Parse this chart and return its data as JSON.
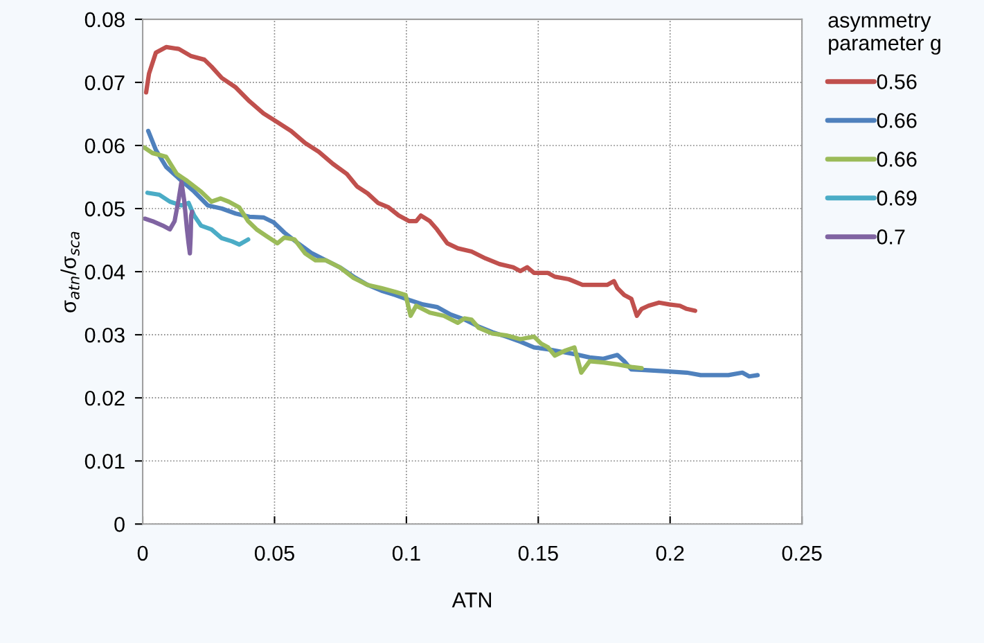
{
  "chart_data": {
    "type": "line",
    "xlabel": "ATN",
    "ylabel": "σ$_{atn}$/σ$_{sca}$",
    "legend_title": "asymmetry\nparameter g",
    "xlim": [
      0,
      0.25
    ],
    "xticks": [
      0,
      0.05,
      0.1,
      0.15,
      0.2,
      0.25
    ],
    "ylim": [
      0,
      0.08
    ],
    "yticks": [
      0,
      0.01,
      0.02,
      0.03,
      0.04,
      0.05,
      0.06,
      0.07,
      0.08
    ],
    "grid": true,
    "legend": "right",
    "line_style": "solid",
    "marker": "none",
    "series": [
      {
        "name": "0.56",
        "color": "#c0504d",
        "x": [
          0.0013,
          0.0024,
          0.005,
          0.0089,
          0.0137,
          0.0182,
          0.0234,
          0.0261,
          0.03,
          0.0353,
          0.0405,
          0.0458,
          0.0511,
          0.0563,
          0.0616,
          0.0668,
          0.0721,
          0.0774,
          0.0813,
          0.0853,
          0.0892,
          0.0932,
          0.0971,
          0.1011,
          0.1037,
          0.1055,
          0.1089,
          0.1116,
          0.1155,
          0.1195,
          0.1247,
          0.13,
          0.1353,
          0.1405,
          0.1432,
          0.1458,
          0.1484,
          0.1537,
          0.1563,
          0.1616,
          0.1668,
          0.1721,
          0.1761,
          0.1787,
          0.18,
          0.1826,
          0.1853,
          0.1874,
          0.1892,
          0.1918,
          0.1958,
          0.1997,
          0.2037,
          0.2063,
          0.2095
        ],
        "values": [
          0.0684,
          0.0714,
          0.0747,
          0.0756,
          0.0753,
          0.0742,
          0.0736,
          0.0725,
          0.0707,
          0.0692,
          0.067,
          0.0651,
          0.0637,
          0.0623,
          0.0604,
          0.059,
          0.0571,
          0.0555,
          0.0535,
          0.0524,
          0.0509,
          0.0502,
          0.0489,
          0.048,
          0.048,
          0.0489,
          0.048,
          0.0467,
          0.0445,
          0.0437,
          0.0432,
          0.0421,
          0.0412,
          0.0407,
          0.0401,
          0.0407,
          0.0398,
          0.0398,
          0.0392,
          0.0388,
          0.0379,
          0.0379,
          0.0379,
          0.0385,
          0.0374,
          0.0363,
          0.0357,
          0.033,
          0.0341,
          0.0346,
          0.0351,
          0.0348,
          0.0346,
          0.0341,
          0.0338
        ]
      },
      {
        "name": "0.66",
        "color": "#4f81bd",
        "x": [
          0.0021,
          0.005,
          0.0089,
          0.0142,
          0.0195,
          0.0247,
          0.03,
          0.0353,
          0.0405,
          0.0458,
          0.0497,
          0.0537,
          0.0589,
          0.0642,
          0.0695,
          0.0747,
          0.08,
          0.0853,
          0.0905,
          0.0958,
          0.1011,
          0.1063,
          0.1116,
          0.1168,
          0.1221,
          0.1274,
          0.1326,
          0.1379,
          0.1432,
          0.1484,
          0.1537,
          0.1589,
          0.1642,
          0.1695,
          0.1747,
          0.18,
          0.1826,
          0.1853,
          0.1905,
          0.1984,
          0.2063,
          0.2116,
          0.2168,
          0.2221,
          0.2274,
          0.23,
          0.2332
        ],
        "values": [
          0.0623,
          0.0593,
          0.0566,
          0.0546,
          0.0527,
          0.0505,
          0.05,
          0.0492,
          0.0487,
          0.0486,
          0.0478,
          0.0462,
          0.0445,
          0.0429,
          0.0418,
          0.0407,
          0.0392,
          0.0379,
          0.037,
          0.0363,
          0.0355,
          0.0348,
          0.0344,
          0.0332,
          0.0324,
          0.0313,
          0.0304,
          0.0297,
          0.0289,
          0.028,
          0.0277,
          0.0273,
          0.0269,
          0.0264,
          0.0262,
          0.0268,
          0.0258,
          0.0245,
          0.0244,
          0.0242,
          0.024,
          0.0236,
          0.0236,
          0.0236,
          0.024,
          0.0234,
          0.0236
        ]
      },
      {
        "name": "0.66",
        "color": "#9bbb59",
        "x": [
          0.0005,
          0.0037,
          0.0089,
          0.0129,
          0.0168,
          0.0221,
          0.0261,
          0.0295,
          0.0326,
          0.0366,
          0.04,
          0.0432,
          0.0471,
          0.0511,
          0.0537,
          0.0576,
          0.0616,
          0.0655,
          0.0695,
          0.0747,
          0.08,
          0.0853,
          0.0905,
          0.0958,
          0.0997,
          0.1016,
          0.1037,
          0.1089,
          0.1142,
          0.1195,
          0.1221,
          0.1247,
          0.1274,
          0.1326,
          0.1379,
          0.1432,
          0.1484,
          0.1511,
          0.1537,
          0.1563,
          0.1603,
          0.1637,
          0.1663,
          0.1695,
          0.1747,
          0.18,
          0.1853,
          0.1892
        ],
        "values": [
          0.0597,
          0.0588,
          0.0582,
          0.0555,
          0.0544,
          0.0527,
          0.0511,
          0.0516,
          0.0511,
          0.0502,
          0.048,
          0.0467,
          0.0456,
          0.0445,
          0.0454,
          0.0451,
          0.0429,
          0.0418,
          0.0418,
          0.0407,
          0.039,
          0.0379,
          0.0374,
          0.0368,
          0.0363,
          0.033,
          0.0346,
          0.0335,
          0.033,
          0.0319,
          0.0326,
          0.0324,
          0.0311,
          0.0302,
          0.0299,
          0.0293,
          0.0297,
          0.0286,
          0.028,
          0.0267,
          0.0275,
          0.028,
          0.024,
          0.0258,
          0.0256,
          0.0253,
          0.0249,
          0.0247
        ]
      },
      {
        "name": "0.69",
        "color": "#4bacc6",
        "x": [
          0.0018,
          0.0063,
          0.0103,
          0.0147,
          0.0174,
          0.0195,
          0.0221,
          0.0261,
          0.03,
          0.0339,
          0.0366,
          0.04
        ],
        "values": [
          0.0525,
          0.0522,
          0.0511,
          0.0505,
          0.0509,
          0.0489,
          0.0473,
          0.0467,
          0.0453,
          0.0448,
          0.0443,
          0.0451
        ]
      },
      {
        "name": "0.7",
        "color": "#8064a2",
        "x": [
          0.0008,
          0.0037,
          0.0076,
          0.0103,
          0.0121,
          0.0137,
          0.0147,
          0.0158,
          0.0168,
          0.0174,
          0.0179,
          0.0182,
          0.0184,
          0.0187
        ],
        "values": [
          0.0484,
          0.048,
          0.0473,
          0.0467,
          0.048,
          0.0516,
          0.0542,
          0.0511,
          0.0467,
          0.0445,
          0.0429,
          0.0456,
          0.0489,
          0.0495
        ]
      }
    ]
  }
}
